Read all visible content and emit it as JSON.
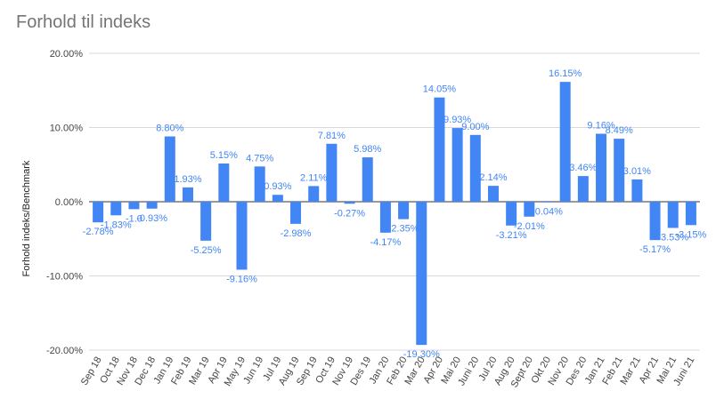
{
  "chart_data": {
    "type": "bar",
    "title": "Forhold til indeks",
    "xlabel": "",
    "ylabel": "Forhold indeks/Benchmark",
    "ylim": [
      -20,
      20
    ],
    "yticks": [
      "-20.00%",
      "-10.00%",
      "0.00%",
      "10.00%",
      "20.00%"
    ],
    "ytick_values": [
      -20,
      -10,
      0,
      10,
      20
    ],
    "grid": true,
    "legend": "none",
    "bar_color": "#4285f4",
    "categories": [
      "Sep 18",
      "Oct 18",
      "Nov 18",
      "Dec 18",
      "Jan 19",
      "Feb 19",
      "Mar 19",
      "Apr 19",
      "May 19",
      "Jun 19",
      "Jul 19",
      "Aug 19",
      "Sep 19",
      "Oct 19",
      "Nov 19",
      "Des 19",
      "Jan 20",
      "Feb 20",
      "Mar 20",
      "Apr 20",
      "Mai 20",
      "Juni 20",
      "Jul 20",
      "Aug 20",
      "Sept 20",
      "Okt 20",
      "Nov 20",
      "Des 20",
      "Jan 21",
      "Feb 21",
      "Mar 21",
      "Apr 21",
      "Mai 21",
      "Juni 21"
    ],
    "values": [
      -2.78,
      -1.83,
      -1.0,
      -0.93,
      8.8,
      1.93,
      -5.25,
      5.15,
      -9.16,
      4.75,
      0.93,
      -2.98,
      2.11,
      7.81,
      -0.27,
      5.98,
      -4.17,
      -2.35,
      -19.3,
      14.05,
      9.93,
      9.0,
      2.14,
      -3.21,
      -2.01,
      -0.04,
      16.15,
      3.46,
      9.16,
      8.49,
      3.01,
      -5.17,
      -3.53,
      -3.15
    ],
    "data_labels": [
      "-2.78%",
      "-1.83%",
      "-1.0",
      "-0.93%",
      "8.80%",
      "1.93%",
      "-5.25%",
      "5.15%",
      "-9.16%",
      "4.75%",
      "0.93%",
      "-2.98%",
      "2.11%",
      "7.81%",
      "-0.27%",
      "5.98%",
      "-4.17%",
      "-2.35%",
      "-19.30%",
      "14.05%",
      "9.93%",
      "9.00%",
      "2.14%",
      "-3.21%",
      "-2.01%",
      "-0.04%",
      "16.15%",
      "3.46%",
      "9.16%",
      "8.49%",
      "3.01%",
      "-5.17%",
      "-3.53%",
      "-3.15%"
    ]
  }
}
